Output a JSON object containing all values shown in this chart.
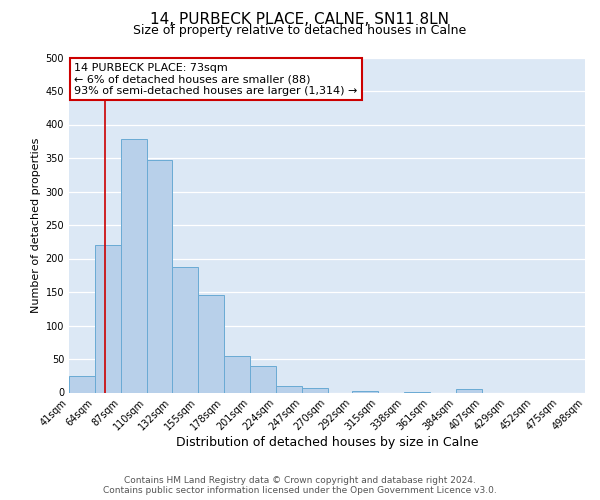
{
  "title": "14, PURBECK PLACE, CALNE, SN11 8LN",
  "subtitle": "Size of property relative to detached houses in Calne",
  "xlabel": "Distribution of detached houses by size in Calne",
  "ylabel": "Number of detached properties",
  "bar_heights": [
    25,
    220,
    378,
    347,
    188,
    145,
    54,
    40,
    10,
    7,
    0,
    2,
    0,
    1,
    0,
    5,
    0,
    0,
    0,
    0
  ],
  "bin_edges": [
    41,
    64,
    87,
    110,
    132,
    155,
    178,
    201,
    224,
    247,
    270,
    292,
    315,
    338,
    361,
    384,
    407,
    429,
    452,
    475,
    498
  ],
  "tick_labels": [
    "41sqm",
    "64sqm",
    "87sqm",
    "110sqm",
    "132sqm",
    "155sqm",
    "178sqm",
    "201sqm",
    "224sqm",
    "247sqm",
    "270sqm",
    "292sqm",
    "315sqm",
    "338sqm",
    "361sqm",
    "384sqm",
    "407sqm",
    "429sqm",
    "452sqm",
    "475sqm",
    "498sqm"
  ],
  "bar_color": "#b8d0ea",
  "bar_edge_color": "#6aaad4",
  "vline_x": 73,
  "vline_color": "#cc0000",
  "annotation_line1": "14 PURBECK PLACE: 73sqm",
  "annotation_line2": "← 6% of detached houses are smaller (88)",
  "annotation_line3": "93% of semi-detached houses are larger (1,314) →",
  "annotation_box_facecolor": "#ffffff",
  "annotation_box_edgecolor": "#cc0000",
  "ylim": [
    0,
    500
  ],
  "yticks": [
    0,
    50,
    100,
    150,
    200,
    250,
    300,
    350,
    400,
    450,
    500
  ],
  "footer_line1": "Contains HM Land Registry data © Crown copyright and database right 2024.",
  "footer_line2": "Contains public sector information licensed under the Open Government Licence v3.0.",
  "plot_bg_color": "#dce8f5",
  "fig_bg_color": "#ffffff",
  "grid_color": "#ffffff",
  "title_fontsize": 11,
  "subtitle_fontsize": 9,
  "xlabel_fontsize": 9,
  "ylabel_fontsize": 8,
  "tick_fontsize": 7,
  "footer_fontsize": 6.5,
  "annotation_fontsize": 8
}
